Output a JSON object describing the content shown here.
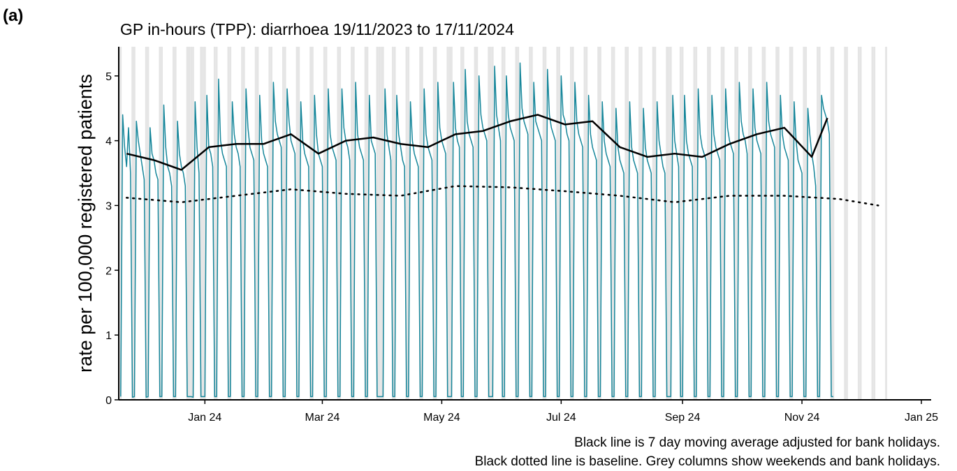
{
  "chart_data": {
    "type": "line",
    "panel_label": "(a)",
    "title": "GP in-hours (TPP): diarrhoea 19/11/2023 to 17/11/2024",
    "y_label": "rate per 100,000 registered patients",
    "notes": [
      "Black line is 7 day moving average adjusted for bank holidays.",
      "Black dotted line is baseline. Grey columns show weekends and bank holidays."
    ],
    "xlim": [
      "2023-11-18",
      "2025-01-06"
    ],
    "xticks": [
      {
        "value": "2024-01-01",
        "label": "Jan 24"
      },
      {
        "value": "2024-03-01",
        "label": "Mar 24"
      },
      {
        "value": "2024-05-01",
        "label": "May 24"
      },
      {
        "value": "2024-07-01",
        "label": "Jul 24"
      },
      {
        "value": "2024-09-01",
        "label": "Sep 24"
      },
      {
        "value": "2024-11-01",
        "label": "Nov 24"
      },
      {
        "value": "2025-01-01",
        "label": "Jan 25"
      }
    ],
    "ylim": [
      0,
      5.45
    ],
    "yticks": [
      0,
      1,
      2,
      3,
      4,
      5
    ],
    "bank_holidays": [
      "2023-12-25",
      "2023-12-26",
      "2024-01-01",
      "2024-03-29",
      "2024-04-01",
      "2024-05-06",
      "2024-05-27",
      "2024-08-26"
    ],
    "shading_color": "#e5e5e5",
    "series": [
      {
        "color": "#16869a",
        "style": "solid",
        "width": 1.5,
        "x": [
          "2023-11-19",
          "2023-11-20",
          "2023-11-21",
          "2023-11-22",
          "2023-11-23",
          "2023-11-24",
          "2023-11-25",
          "2023-11-26",
          "2023-11-27",
          "2023-11-28",
          "2023-11-29",
          "2023-11-30",
          "2023-12-01",
          "2023-12-02",
          "2023-12-03",
          "2023-12-04",
          "2023-12-05",
          "2023-12-06",
          "2023-12-07",
          "2023-12-08",
          "2023-12-09",
          "2023-12-10",
          "2023-12-11",
          "2023-12-12",
          "2023-12-13",
          "2023-12-14",
          "2023-12-15",
          "2023-12-16",
          "2023-12-17",
          "2023-12-18",
          "2023-12-19",
          "2023-12-20",
          "2023-12-21",
          "2023-12-22",
          "2023-12-23",
          "2023-12-24",
          "2023-12-25",
          "2023-12-26",
          "2023-12-27",
          "2023-12-28",
          "2023-12-29",
          "2023-12-30",
          "2023-12-31",
          "2024-01-01",
          "2024-01-02",
          "2024-01-03",
          "2024-01-04",
          "2024-01-05",
          "2024-01-06",
          "2024-01-07",
          "2024-01-08",
          "2024-01-09",
          "2024-01-10",
          "2024-01-11",
          "2024-01-12",
          "2024-01-13",
          "2024-01-14",
          "2024-01-15",
          "2024-01-16",
          "2024-01-17",
          "2024-01-18",
          "2024-01-19",
          "2024-01-20",
          "2024-01-21",
          "2024-01-22",
          "2024-01-23",
          "2024-01-24",
          "2024-01-25",
          "2024-01-26",
          "2024-01-27",
          "2024-01-28",
          "2024-01-29",
          "2024-01-30",
          "2024-01-31",
          "2024-02-01",
          "2024-02-02",
          "2024-02-03",
          "2024-02-04",
          "2024-02-05",
          "2024-02-06",
          "2024-02-07",
          "2024-02-08",
          "2024-02-09",
          "2024-02-10",
          "2024-02-11",
          "2024-02-12",
          "2024-02-13",
          "2024-02-14",
          "2024-02-15",
          "2024-02-16",
          "2024-02-17",
          "2024-02-18",
          "2024-02-19",
          "2024-02-20",
          "2024-02-21",
          "2024-02-22",
          "2024-02-23",
          "2024-02-24",
          "2024-02-25",
          "2024-02-26",
          "2024-02-27",
          "2024-02-28",
          "2024-02-29",
          "2024-03-01",
          "2024-03-02",
          "2024-03-03",
          "2024-03-04",
          "2024-03-05",
          "2024-03-06",
          "2024-03-07",
          "2024-03-08",
          "2024-03-09",
          "2024-03-10",
          "2024-03-11",
          "2024-03-12",
          "2024-03-13",
          "2024-03-14",
          "2024-03-15",
          "2024-03-16",
          "2024-03-17",
          "2024-03-18",
          "2024-03-19",
          "2024-03-20",
          "2024-03-21",
          "2024-03-22",
          "2024-03-23",
          "2024-03-24",
          "2024-03-25",
          "2024-03-26",
          "2024-03-27",
          "2024-03-28",
          "2024-03-29",
          "2024-03-30",
          "2024-03-31",
          "2024-04-01",
          "2024-04-02",
          "2024-04-03",
          "2024-04-04",
          "2024-04-05",
          "2024-04-06",
          "2024-04-07",
          "2024-04-08",
          "2024-04-09",
          "2024-04-10",
          "2024-04-11",
          "2024-04-12",
          "2024-04-13",
          "2024-04-14",
          "2024-04-15",
          "2024-04-16",
          "2024-04-17",
          "2024-04-18",
          "2024-04-19",
          "2024-04-20",
          "2024-04-21",
          "2024-04-22",
          "2024-04-23",
          "2024-04-24",
          "2024-04-25",
          "2024-04-26",
          "2024-04-27",
          "2024-04-28",
          "2024-04-29",
          "2024-04-30",
          "2024-05-01",
          "2024-05-02",
          "2024-05-03",
          "2024-05-04",
          "2024-05-05",
          "2024-05-06",
          "2024-05-07",
          "2024-05-08",
          "2024-05-09",
          "2024-05-10",
          "2024-05-11",
          "2024-05-12",
          "2024-05-13",
          "2024-05-14",
          "2024-05-15",
          "2024-05-16",
          "2024-05-17",
          "2024-05-18",
          "2024-05-19",
          "2024-05-20",
          "2024-05-21",
          "2024-05-22",
          "2024-05-23",
          "2024-05-24",
          "2024-05-25",
          "2024-05-26",
          "2024-05-27",
          "2024-05-28",
          "2024-05-29",
          "2024-05-30",
          "2024-05-31",
          "2024-06-01",
          "2024-06-02",
          "2024-06-03",
          "2024-06-04",
          "2024-06-05",
          "2024-06-06",
          "2024-06-07",
          "2024-06-08",
          "2024-06-09",
          "2024-06-10",
          "2024-06-11",
          "2024-06-12",
          "2024-06-13",
          "2024-06-14",
          "2024-06-15",
          "2024-06-16",
          "2024-06-17",
          "2024-06-18",
          "2024-06-19",
          "2024-06-20",
          "2024-06-21",
          "2024-06-22",
          "2024-06-23",
          "2024-06-24",
          "2024-06-25",
          "2024-06-26",
          "2024-06-27",
          "2024-06-28",
          "2024-06-29",
          "2024-06-30",
          "2024-07-01",
          "2024-07-02",
          "2024-07-03",
          "2024-07-04",
          "2024-07-05",
          "2024-07-06",
          "2024-07-07",
          "2024-07-08",
          "2024-07-09",
          "2024-07-10",
          "2024-07-11",
          "2024-07-12",
          "2024-07-13",
          "2024-07-14",
          "2024-07-15",
          "2024-07-16",
          "2024-07-17",
          "2024-07-18",
          "2024-07-19",
          "2024-07-20",
          "2024-07-21",
          "2024-07-22",
          "2024-07-23",
          "2024-07-24",
          "2024-07-25",
          "2024-07-26",
          "2024-07-27",
          "2024-07-28",
          "2024-07-29",
          "2024-07-30",
          "2024-07-31",
          "2024-08-01",
          "2024-08-02",
          "2024-08-03",
          "2024-08-04",
          "2024-08-05",
          "2024-08-06",
          "2024-08-07",
          "2024-08-08",
          "2024-08-09",
          "2024-08-10",
          "2024-08-11",
          "2024-08-12",
          "2024-08-13",
          "2024-08-14",
          "2024-08-15",
          "2024-08-16",
          "2024-08-17",
          "2024-08-18",
          "2024-08-19",
          "2024-08-20",
          "2024-08-21",
          "2024-08-22",
          "2024-08-23",
          "2024-08-24",
          "2024-08-25",
          "2024-08-26",
          "2024-08-27",
          "2024-08-28",
          "2024-08-29",
          "2024-08-30",
          "2024-08-31",
          "2024-09-01",
          "2024-09-02",
          "2024-09-03",
          "2024-09-04",
          "2024-09-05",
          "2024-09-06",
          "2024-09-07",
          "2024-09-08",
          "2024-09-09",
          "2024-09-10",
          "2024-09-11",
          "2024-09-12",
          "2024-09-13",
          "2024-09-14",
          "2024-09-15",
          "2024-09-16",
          "2024-09-17",
          "2024-09-18",
          "2024-09-19",
          "2024-09-20",
          "2024-09-21",
          "2024-09-22",
          "2024-09-23",
          "2024-09-24",
          "2024-09-25",
          "2024-09-26",
          "2024-09-27",
          "2024-09-28",
          "2024-09-29",
          "2024-09-30",
          "2024-10-01",
          "2024-10-02",
          "2024-10-03",
          "2024-10-04",
          "2024-10-05",
          "2024-10-06",
          "2024-10-07",
          "2024-10-08",
          "2024-10-09",
          "2024-10-10",
          "2024-10-11",
          "2024-10-12",
          "2024-10-13",
          "2024-10-14",
          "2024-10-15",
          "2024-10-16",
          "2024-10-17",
          "2024-10-18",
          "2024-10-19",
          "2024-10-20",
          "2024-10-21",
          "2024-10-22",
          "2024-10-23",
          "2024-10-24",
          "2024-10-25",
          "2024-10-26",
          "2024-10-27",
          "2024-10-28",
          "2024-10-29",
          "2024-10-30",
          "2024-10-31",
          "2024-11-01",
          "2024-11-02",
          "2024-11-03",
          "2024-11-04",
          "2024-11-05",
          "2024-11-06",
          "2024-11-07",
          "2024-11-08",
          "2024-11-09",
          "2024-11-10",
          "2024-11-11",
          "2024-11-12",
          "2024-11-13",
          "2024-11-14",
          "2024-11-15",
          "2024-11-16",
          "2024-11-17"
        ],
        "values": [
          0.05,
          4.4,
          3.9,
          3.6,
          4.2,
          3.5,
          0.04,
          0.05,
          4.3,
          4.0,
          3.8,
          3.6,
          3.4,
          0.04,
          0.05,
          4.2,
          3.8,
          3.7,
          3.5,
          3.4,
          0.05,
          0.05,
          4.55,
          3.9,
          3.6,
          3.5,
          3.3,
          0.05,
          0.05,
          4.3,
          3.8,
          3.6,
          3.5,
          3.3,
          0.05,
          0.05,
          0.05,
          0.04,
          4.6,
          3.9,
          3.5,
          0.05,
          0.05,
          0.05,
          4.7,
          3.9,
          3.8,
          3.6,
          0.05,
          0.05,
          4.95,
          4.0,
          3.8,
          3.7,
          3.6,
          0.05,
          0.05,
          4.6,
          4.1,
          3.9,
          3.8,
          3.6,
          0.05,
          0.05,
          4.8,
          4.2,
          3.9,
          3.8,
          3.7,
          0.05,
          0.05,
          4.7,
          4.0,
          3.8,
          3.7,
          3.6,
          0.05,
          0.05,
          4.9,
          4.3,
          4.1,
          4.0,
          3.9,
          0.05,
          0.05,
          4.8,
          4.3,
          4.0,
          3.9,
          3.8,
          0.05,
          0.05,
          4.6,
          4.0,
          3.8,
          3.7,
          3.6,
          0.05,
          0.05,
          4.7,
          4.1,
          3.8,
          3.7,
          3.6,
          0.05,
          0.05,
          4.8,
          4.1,
          3.9,
          3.8,
          3.7,
          0.05,
          0.05,
          4.8,
          4.2,
          4.0,
          3.9,
          3.7,
          0.05,
          0.05,
          4.9,
          4.1,
          3.9,
          3.8,
          3.7,
          0.05,
          0.05,
          4.7,
          4.0,
          3.9,
          3.8,
          0.05,
          0.05,
          0.05,
          0.05,
          4.8,
          4.1,
          3.9,
          3.7,
          0.05,
          0.05,
          4.7,
          4.1,
          3.9,
          3.7,
          3.6,
          0.05,
          0.05,
          4.6,
          4.0,
          3.8,
          3.7,
          3.6,
          0.05,
          0.05,
          4.8,
          4.1,
          3.9,
          3.8,
          3.7,
          0.05,
          0.05,
          4.9,
          4.2,
          4.0,
          3.9,
          3.8,
          0.05,
          0.05,
          0.05,
          4.9,
          4.2,
          4.0,
          3.9,
          0.05,
          0.05,
          5.1,
          4.3,
          4.1,
          4.0,
          3.9,
          0.05,
          0.05,
          5.0,
          4.4,
          4.2,
          4.1,
          4.0,
          0.05,
          0.05,
          0.05,
          5.15,
          4.4,
          4.2,
          4.0,
          0.05,
          0.05,
          5.0,
          4.4,
          4.2,
          4.1,
          4.0,
          0.05,
          0.05,
          5.2,
          4.5,
          4.3,
          4.2,
          4.1,
          0.05,
          0.05,
          4.9,
          4.3,
          4.2,
          4.1,
          4.0,
          0.05,
          0.05,
          5.1,
          4.4,
          4.2,
          4.1,
          4.0,
          0.05,
          0.05,
          5.0,
          4.4,
          4.3,
          4.1,
          4.0,
          0.05,
          0.05,
          4.9,
          4.3,
          4.1,
          4.0,
          3.9,
          0.05,
          0.05,
          4.7,
          4.1,
          3.9,
          3.8,
          3.7,
          0.05,
          0.05,
          4.6,
          4.0,
          3.8,
          3.7,
          3.6,
          0.05,
          0.05,
          4.5,
          3.9,
          3.7,
          3.6,
          3.5,
          0.05,
          0.05,
          4.6,
          3.9,
          3.7,
          3.6,
          3.5,
          0.05,
          0.05,
          4.5,
          3.9,
          3.7,
          3.6,
          3.5,
          0.05,
          0.05,
          4.6,
          4.0,
          3.8,
          3.6,
          3.5,
          0.05,
          0.05,
          0.05,
          4.7,
          4.0,
          3.8,
          3.6,
          0.05,
          0.05,
          4.7,
          4.0,
          3.8,
          3.7,
          3.6,
          0.05,
          0.05,
          4.8,
          4.1,
          3.9,
          3.8,
          3.7,
          0.05,
          0.05,
          4.7,
          4.1,
          3.9,
          3.8,
          3.7,
          0.05,
          0.05,
          4.8,
          4.2,
          4.0,
          3.9,
          3.8,
          0.05,
          0.05,
          4.9,
          4.3,
          4.1,
          4.0,
          3.8,
          0.05,
          0.05,
          4.8,
          4.2,
          4.0,
          3.9,
          3.8,
          0.05,
          0.05,
          4.9,
          4.3,
          4.1,
          4.0,
          3.9,
          0.05,
          0.05,
          4.7,
          4.1,
          3.9,
          3.8,
          3.7,
          0.05,
          0.05,
          4.6,
          4.0,
          3.7,
          3.6,
          3.5,
          0.05,
          0.05,
          4.5,
          4.1,
          3.8,
          3.6,
          3.3,
          0.05,
          0.05,
          4.7,
          4.5,
          4.4,
          4.3,
          4.1,
          0.05,
          0.05
        ]
      },
      {
        "color": "#000000",
        "style": "solid",
        "width": 2.5,
        "x": [
          "2023-11-22",
          "2023-12-06",
          "2023-12-20",
          "2024-01-03",
          "2024-01-17",
          "2024-01-31",
          "2024-02-14",
          "2024-02-28",
          "2024-03-13",
          "2024-03-27",
          "2024-04-10",
          "2024-04-24",
          "2024-05-08",
          "2024-05-22",
          "2024-06-05",
          "2024-06-19",
          "2024-07-03",
          "2024-07-17",
          "2024-07-31",
          "2024-08-14",
          "2024-08-28",
          "2024-09-11",
          "2024-09-25",
          "2024-10-09",
          "2024-10-23",
          "2024-11-06",
          "2024-11-14"
        ],
        "values": [
          3.8,
          3.7,
          3.55,
          3.9,
          3.95,
          3.95,
          4.1,
          3.8,
          4.0,
          4.05,
          3.95,
          3.9,
          4.1,
          4.15,
          4.3,
          4.4,
          4.25,
          4.3,
          3.9,
          3.75,
          3.8,
          3.75,
          3.95,
          4.1,
          4.2,
          3.75,
          4.35
        ]
      },
      {
        "color": "#000000",
        "style": "dotted",
        "width": 2.5,
        "x": [
          "2023-11-22",
          "2023-12-20",
          "2024-01-17",
          "2024-02-14",
          "2024-03-13",
          "2024-04-10",
          "2024-05-08",
          "2024-06-05",
          "2024-07-03",
          "2024-07-31",
          "2024-08-28",
          "2024-09-25",
          "2024-10-23",
          "2024-11-20",
          "2024-12-10"
        ],
        "values": [
          3.12,
          3.05,
          3.15,
          3.25,
          3.18,
          3.15,
          3.3,
          3.28,
          3.22,
          3.15,
          3.05,
          3.15,
          3.15,
          3.1,
          3.0
        ]
      }
    ]
  }
}
